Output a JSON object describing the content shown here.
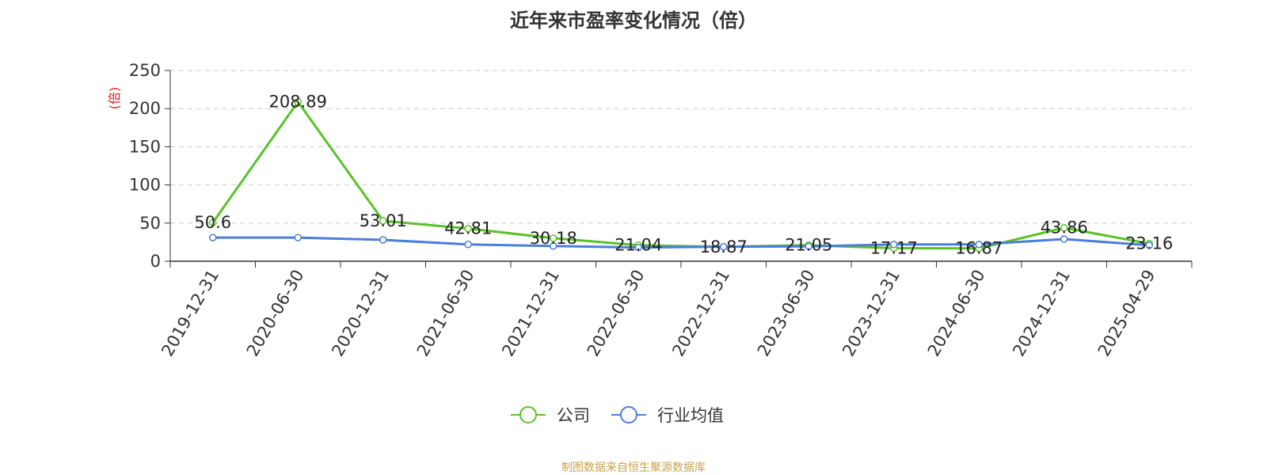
{
  "chart_data": {
    "type": "line",
    "title": "近年来市盈率变化情况（倍）",
    "ylabel": "(倍)",
    "xlabel": "",
    "ylim": [
      0,
      250
    ],
    "yticks": [
      0,
      50,
      100,
      150,
      200,
      250
    ],
    "grid": true,
    "legend_position": "bottom",
    "categories": [
      "2019-12-31",
      "2020-06-30",
      "2020-12-31",
      "2021-06-30",
      "2021-12-31",
      "2022-06-30",
      "2022-12-31",
      "2023-06-30",
      "2023-12-31",
      "2024-06-30",
      "2024-12-31",
      "2025-04-29"
    ],
    "series": [
      {
        "name": "公司",
        "color": "#5ac228",
        "values": [
          50.6,
          208.89,
          53.01,
          42.81,
          30.18,
          21.04,
          18.87,
          21.05,
          17.17,
          16.87,
          43.86,
          23.16
        ],
        "labels": [
          "50.6",
          "208.89",
          "53.01",
          "42.81",
          "30.18",
          "21.04",
          "18.87",
          "21.05",
          "17.17",
          "16.87",
          "43.86",
          "23.16"
        ]
      },
      {
        "name": "行业均值",
        "color": "#4a7edd",
        "values": [
          31,
          31,
          28,
          22,
          20,
          18,
          19,
          19.5,
          22,
          22,
          29,
          21
        ]
      }
    ],
    "source_note": "制图数据来自恒生聚源数据库"
  }
}
